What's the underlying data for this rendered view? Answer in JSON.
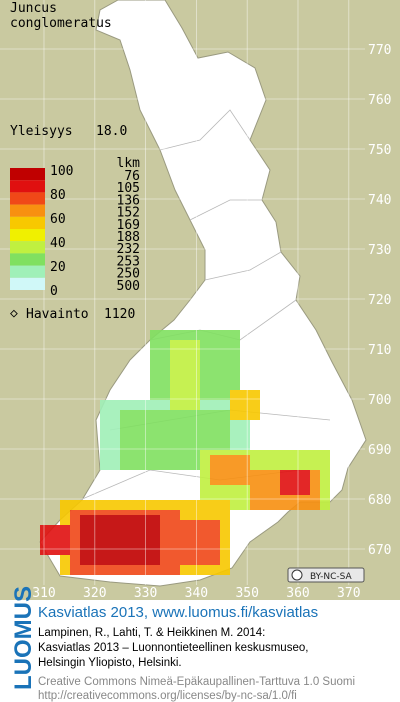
{
  "species": [
    "Juncus",
    "conglomeratus"
  ],
  "frequency": {
    "label": "Yleisyys",
    "value": "18.0"
  },
  "legend": {
    "scale_labels": [
      100,
      80,
      60,
      40,
      20,
      0
    ],
    "count_header": "lkm",
    "counts": [
      76,
      105,
      136,
      152,
      169,
      188,
      232,
      253,
      250,
      500
    ],
    "colors": [
      "#c00000",
      "#e01010",
      "#f04818",
      "#f89010",
      "#f8c800",
      "#f0f000",
      "#c0f040",
      "#80e060",
      "#a0f0b8",
      "#d0f8f8",
      "#ffffff"
    ]
  },
  "observations": {
    "label": "Havainto",
    "value": "1120"
  },
  "axes": {
    "y_ticks": [
      770,
      760,
      750,
      740,
      730,
      720,
      710,
      700,
      690,
      680,
      670
    ],
    "x_ticks": [
      310,
      320,
      330,
      340,
      350,
      360,
      370
    ]
  },
  "license_badge": "BY-NC-SA",
  "footer": {
    "logo": "LUOMUS",
    "link": "Kasviatlas 2013, www.luomus.fi/kasviatlas",
    "citation": [
      "Lampinen, R., Lahti, T. & Heikkinen M. 2014:",
      "Kasviatlas 2013 – Luonnontieteellinen keskusmuseo,",
      "Helsingin Yliopisto, Helsinki."
    ],
    "license": [
      "Creative Commons Nimeä-Epäkaupallinen-Tarttuva 1.0 Suomi",
      "http://creativecommons.org/licenses/by-nc-sa/1.0/fi"
    ]
  }
}
